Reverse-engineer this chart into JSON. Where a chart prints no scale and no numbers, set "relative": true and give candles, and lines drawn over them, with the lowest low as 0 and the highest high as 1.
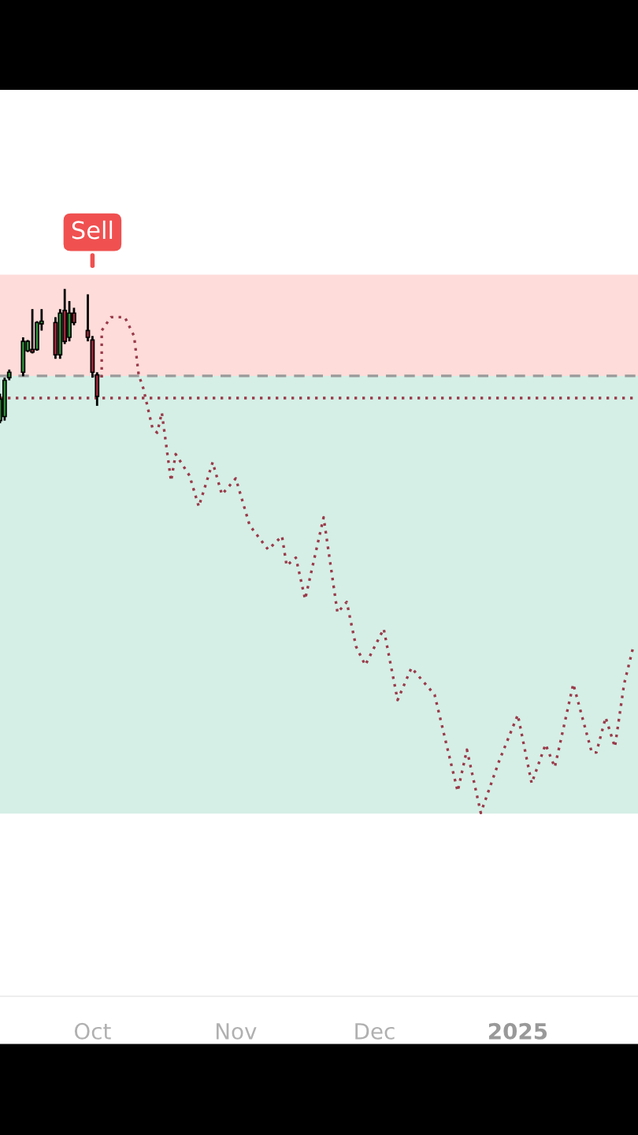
{
  "chart_data": {
    "type": "candlestick",
    "relative": true,
    "x": [
      "2024-09-11",
      "2024-09-12",
      "2024-09-13",
      "2024-09-16",
      "2024-09-17",
      "2024-09-18",
      "2024-09-19",
      "2024-09-20",
      "2024-09-23",
      "2024-09-24",
      "2024-09-25",
      "2024-09-26",
      "2024-09-27",
      "2024-09-30",
      "2024-10-01",
      "2024-10-02"
    ],
    "ohlc": [
      [
        0.02,
        0.22,
        0,
        0.18
      ],
      [
        0.05,
        0.34,
        0.02,
        0.32
      ],
      [
        0.34,
        0.4,
        0.32,
        0.38
      ],
      [
        0.38,
        0.64,
        0.35,
        0.61
      ],
      [
        0.54,
        0.62,
        0.53,
        0.61
      ],
      [
        0.55,
        0.85,
        0.52,
        0.53
      ],
      [
        0.55,
        0.76,
        0.54,
        0.75
      ],
      [
        0.74,
        0.85,
        0.69,
        0.76
      ],
      [
        0.75,
        0.79,
        0.48,
        0.51
      ],
      [
        0.51,
        0.85,
        0.48,
        0.82
      ],
      [
        0.84,
        1,
        0.59,
        0.61
      ],
      [
        0.64,
        0.91,
        0.61,
        0.82
      ],
      [
        0.82,
        0.86,
        0.73,
        0.75
      ],
      [
        0.69,
        0.96,
        0.61,
        0.64
      ],
      [
        0.62,
        0.65,
        0.34,
        0.38
      ],
      [
        0.36,
        0.38,
        0.13,
        0.2
      ]
    ],
    "colors": [
      "#2f8f3a",
      "#2f8f3a",
      "#2f8f3a",
      "#2f8f3a",
      "#2f8f3a",
      "#a3283c",
      "#2f8f3a",
      "#2f8f3a",
      "#a3283c",
      "#2f8f3a",
      "#a3283c",
      "#2f8f3a",
      "#a3283c",
      "#a3283c",
      "#a3283c",
      "#a3283c"
    ],
    "series": [
      {
        "type": "line",
        "color": "#9a3a4a",
        "line_style": "dotted",
        "marker": "none",
        "x": [
          "2024-10-03",
          "2024-10-03",
          "2024-10-05",
          "2024-10-08",
          "2024-10-10",
          "2024-10-11",
          "2024-10-12",
          "2024-10-14",
          "2024-10-15",
          "2024-10-16",
          "2024-10-18",
          "2024-10-19",
          "2024-10-22",
          "2024-10-24",
          "2024-10-27",
          "2024-10-29",
          "2024-11-01",
          "2024-11-04",
          "2024-11-08",
          "2024-11-11",
          "2024-11-12",
          "2024-11-14",
          "2024-11-16",
          "2024-11-20",
          "2024-11-23",
          "2024-11-25",
          "2024-11-27",
          "2024-11-29",
          "2024-12-03",
          "2024-12-06",
          "2024-12-09",
          "2024-12-14",
          "2024-12-19",
          "2024-12-21",
          "2024-12-24",
          "2024-12-28",
          "2025-01-01",
          "2025-01-04",
          "2025-01-07",
          "2025-01-09",
          "2025-01-13",
          "2025-01-17",
          "2025-01-18",
          "2025-01-20",
          "2025-01-22",
          "2025-01-24",
          "2025-01-26"
        ],
        "values": [
          0.34,
          0.69,
          0.79,
          0.79,
          0.65,
          0.36,
          0.26,
          -0.04,
          -0.07,
          0.08,
          -0.43,
          -0.23,
          -0.39,
          -0.62,
          -0.29,
          -0.53,
          -0.41,
          -0.76,
          -0.94,
          -0.84,
          -1.06,
          -1.0,
          -1.31,
          -0.7,
          -1.41,
          -1.33,
          -1.66,
          -1.8,
          -1.53,
          -2.06,
          -1.82,
          -2.02,
          -2.74,
          -2.43,
          -2.9,
          -2.51,
          -2.17,
          -2.68,
          -2.39,
          -2.56,
          -1.94,
          -2.45,
          -2.45,
          -2.19,
          -2.41,
          -1.94,
          -1.66
        ]
      }
    ],
    "bands": [
      {
        "axis": "y",
        "from": 0.353,
        "to": 1.106,
        "color": "#fddcd9"
      },
      {
        "axis": "y",
        "from": -2.906,
        "to": 0.353,
        "color": "#d5efe6"
      }
    ],
    "ref_lines": [
      {
        "axis": "y",
        "value": 0.353,
        "color": "#9a9a9a",
        "line_style": "dashed"
      },
      {
        "axis": "y",
        "value": 0.188,
        "color": "#9a3a4a",
        "line_style": "dotted"
      }
    ],
    "annotations": [
      {
        "text": "Sell",
        "x": "2024-10-01",
        "y": 1.14
      }
    ],
    "xlim": [
      "2024-09-11",
      "2025-01-27"
    ],
    "xticks": [
      {
        "value": "2024-10-01",
        "label": "Oct"
      },
      {
        "value": "2024-11-01",
        "label": "Nov"
      },
      {
        "value": "2024-12-01",
        "label": "Dec"
      },
      {
        "value": "2025-01-01",
        "label": "2025"
      }
    ],
    "tick_labels": "x",
    "grid": false,
    "legend": false
  }
}
